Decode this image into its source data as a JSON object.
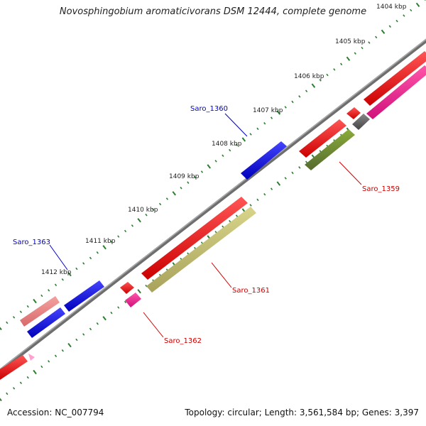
{
  "title": "Novosphingobium aromaticivorans DSM 12444, complete genome",
  "footer": {
    "accession": "Accession: NC_007794",
    "summary": "Topology: circular; Length: 3,561,584 bp; Genes: 3,397"
  },
  "ruler_labels": [
    "1404 kbp",
    "1405 kbp",
    "1406 kbp",
    "1407 kbp",
    "1408 kbp",
    "1409 kbp",
    "1410 kbp",
    "1411 kbp",
    "1412 kbp"
  ],
  "gene_labels": [
    {
      "text": "Saro_1360",
      "color": "#0000cc"
    },
    {
      "text": "Saro_1359",
      "color": "#cc0000"
    },
    {
      "text": "Saro_1363",
      "color": "#0000cc"
    },
    {
      "text": "Saro_1361",
      "color": "#cc0000"
    },
    {
      "text": "Saro_1362",
      "color": "#cc0000"
    }
  ],
  "colors": {
    "backbone": "#808080",
    "cds_red": "#ee0000",
    "cds_blue": "#1010dd",
    "gene_olive": "#6b8e23",
    "gene_khaki": "#bdb76b",
    "gene_magenta": "#ff1493",
    "gene_salmon": "#f08080",
    "gene_pink": "#ff99cc",
    "gene_gray": "#555555",
    "tick_green": "#2e7d32"
  }
}
